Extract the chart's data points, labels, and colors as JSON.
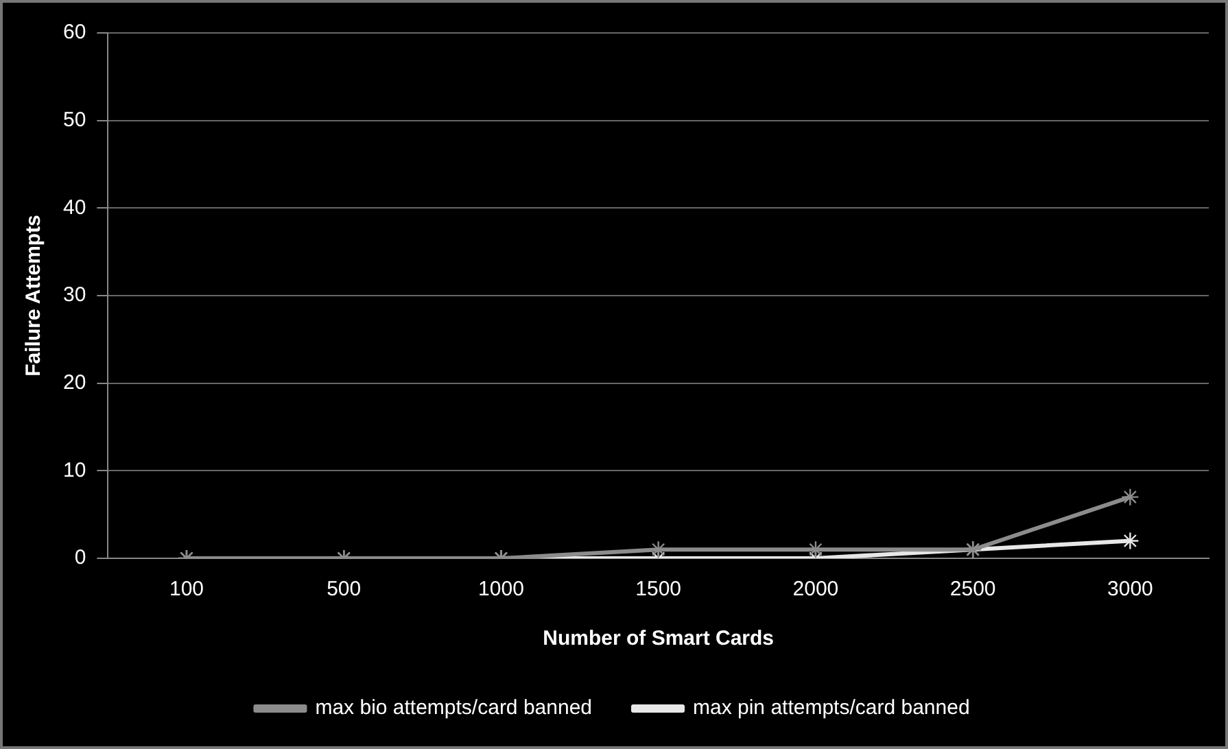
{
  "chart_data": {
    "type": "line",
    "xlabel": "Number of Smart Cards",
    "ylabel": "Failure Attempts",
    "categories": [
      "100",
      "500",
      "1000",
      "1500",
      "2000",
      "2500",
      "3000"
    ],
    "series": [
      {
        "name": "max bio attempts/card banned",
        "color": "#8c8c8c",
        "values": [
          0,
          0,
          0,
          1,
          1,
          1,
          7
        ]
      },
      {
        "name": "max pin attempts/card banned",
        "color": "#e8e8e8",
        "values": [
          0,
          0,
          0,
          0,
          0,
          1,
          2
        ]
      }
    ],
    "ylim": [
      0,
      60
    ],
    "yticks": [
      0,
      10,
      20,
      30,
      40,
      50,
      60
    ],
    "grid": "y",
    "legend": "bottom",
    "marker": "cross",
    "line_style": "solid"
  }
}
